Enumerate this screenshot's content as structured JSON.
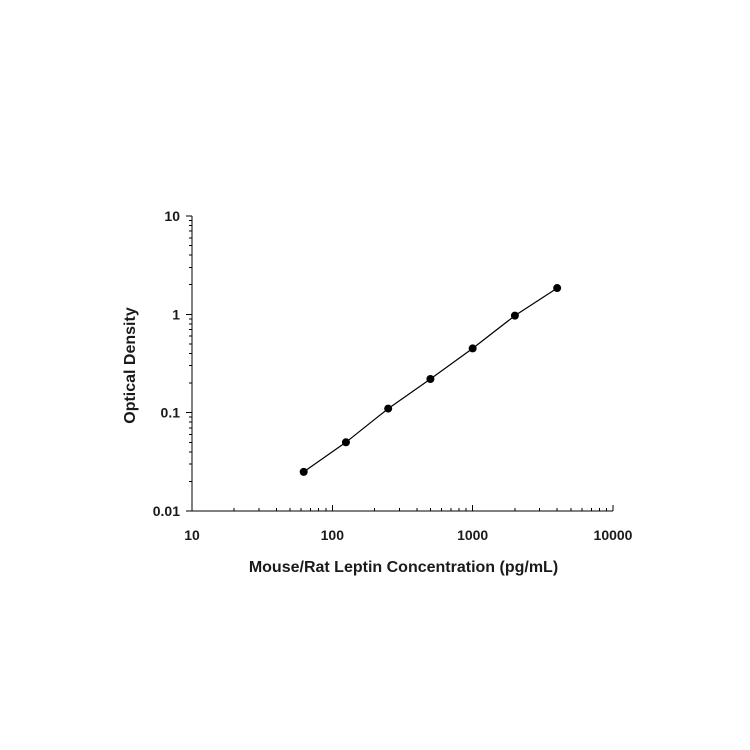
{
  "chart_data": {
    "type": "scatter",
    "xscale": "log",
    "yscale": "log",
    "xlabel": "Mouse/Rat Leptin Concentration (pg/mL)",
    "ylabel": "Optical Density",
    "xlim": [
      10,
      10000
    ],
    "ylim": [
      0.01,
      10
    ],
    "x_ticks": [
      10,
      100,
      1000,
      10000
    ],
    "x_tick_labels": [
      "10",
      "100",
      "1000",
      "10000"
    ],
    "y_ticks": [
      0.01,
      0.1,
      1,
      10
    ],
    "y_tick_labels": [
      "0.01",
      "0.1",
      "1",
      "10"
    ],
    "grid": false,
    "series": [
      {
        "x": [
          62.5,
          125,
          250,
          500,
          1000,
          2000,
          4000
        ],
        "y": [
          0.025,
          0.05,
          0.11,
          0.22,
          0.45,
          0.97,
          1.85
        ],
        "fit_line": true
      }
    ]
  }
}
